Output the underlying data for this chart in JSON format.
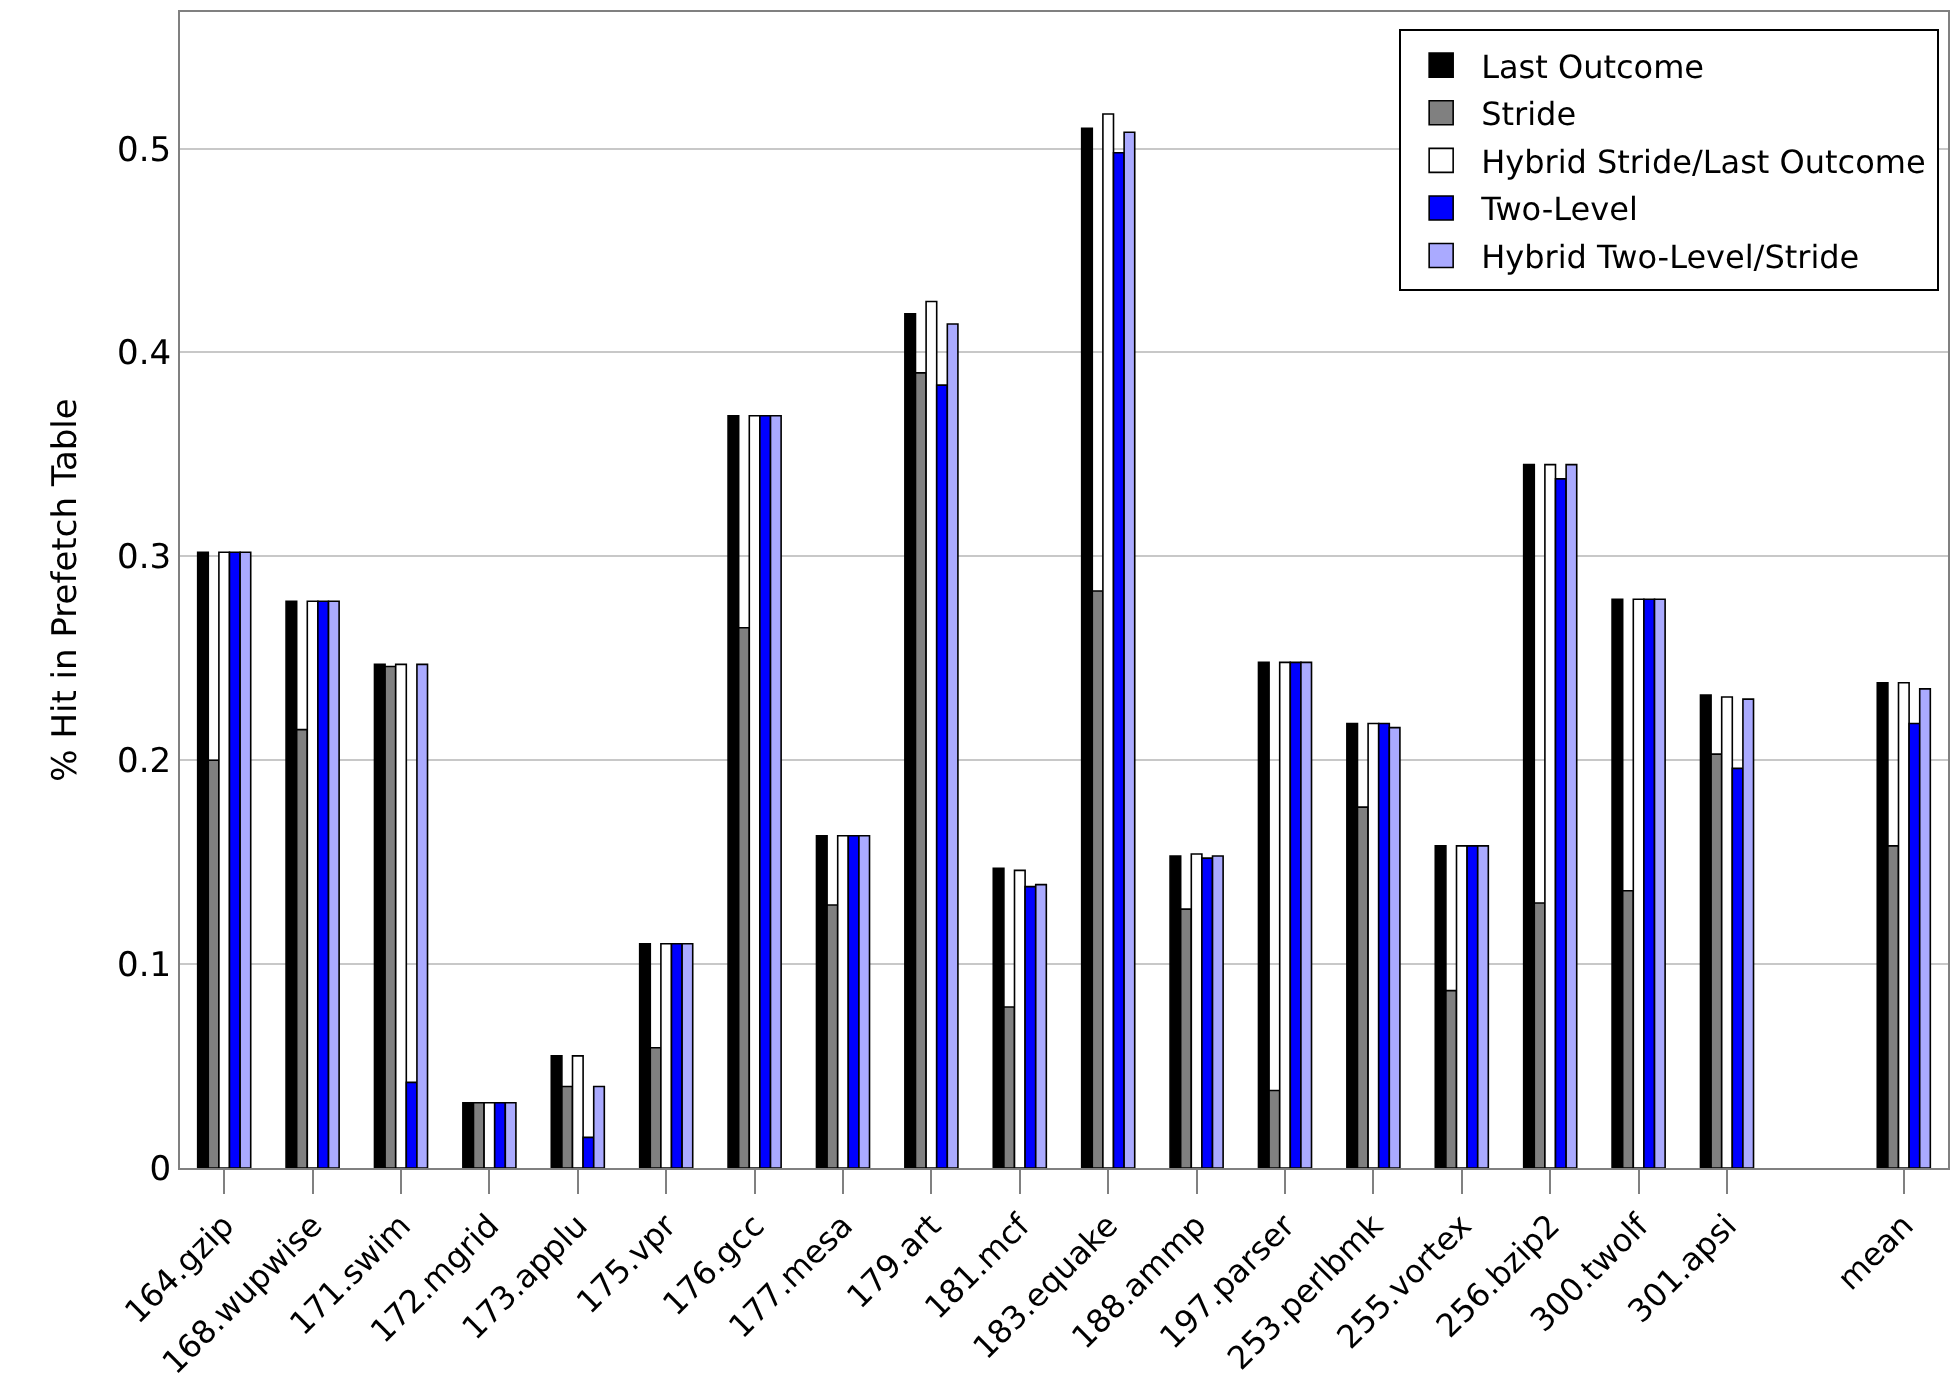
{
  "chart_data": {
    "type": "bar",
    "ylabel": "% Hit in Prefetch Table",
    "categories": [
      "164.gzip",
      "168.wupwise",
      "171.swim",
      "172.mgrid",
      "173.applu",
      "175.vpr",
      "176.gcc",
      "177.mesa",
      "179.art",
      "181.mcf",
      "183.equake",
      "188.ammp",
      "197.parser",
      "253.perlbmk",
      "255.vortex",
      "256.bzip2",
      "300.twolf",
      "301.apsi",
      null,
      "mean"
    ],
    "series": [
      {
        "name": "Last Outcome",
        "color": "#000000",
        "values": [
          0.302,
          0.278,
          0.247,
          0.032,
          0.055,
          0.11,
          0.369,
          0.163,
          0.419,
          0.147,
          0.51,
          0.153,
          0.248,
          0.218,
          0.158,
          0.345,
          0.279,
          0.232,
          null,
          0.238
        ]
      },
      {
        "name": "Stride",
        "color": "#808080",
        "values": [
          0.2,
          0.215,
          0.246,
          0.032,
          0.04,
          0.059,
          0.265,
          0.129,
          0.39,
          0.079,
          0.283,
          0.127,
          0.038,
          0.177,
          0.087,
          0.13,
          0.136,
          0.203,
          null,
          0.158
        ]
      },
      {
        "name": "Hybrid Stride/Last Outcome",
        "color": "#ffffff",
        "values": [
          0.302,
          0.278,
          0.247,
          0.032,
          0.055,
          0.11,
          0.369,
          0.163,
          0.425,
          0.146,
          0.517,
          0.154,
          0.248,
          0.218,
          0.158,
          0.345,
          0.279,
          0.231,
          null,
          0.238
        ]
      },
      {
        "name": "Two-Level",
        "color": "#0000ff",
        "values": [
          0.302,
          0.278,
          0.042,
          0.032,
          0.015,
          0.11,
          0.369,
          0.163,
          0.384,
          0.138,
          0.498,
          0.152,
          0.248,
          0.218,
          0.158,
          0.338,
          0.279,
          0.196,
          null,
          0.218
        ]
      },
      {
        "name": "Hybrid Two-Level/Stride",
        "color": "#aaaaff",
        "values": [
          0.302,
          0.278,
          0.247,
          0.032,
          0.04,
          0.11,
          0.369,
          0.163,
          0.414,
          0.139,
          0.508,
          0.153,
          0.248,
          0.216,
          0.158,
          0.345,
          0.279,
          0.23,
          null,
          0.235
        ]
      }
    ],
    "ylim": [
      0,
      0.567
    ],
    "yticks": [
      0,
      0.1,
      0.2,
      0.3,
      0.4,
      0.5
    ],
    "grid": "y",
    "legend": "top right"
  }
}
